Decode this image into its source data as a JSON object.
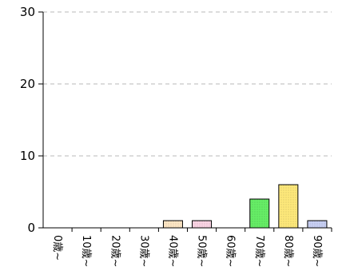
{
  "chart_data": {
    "type": "bar",
    "categories": [
      "0歳~",
      "10歳~",
      "20歳~",
      "30歳~",
      "40歳~",
      "50歳~",
      "60歳~",
      "70歳~",
      "80歳~",
      "90歳~"
    ],
    "values": [
      0,
      0,
      0,
      0,
      1,
      1,
      0,
      4,
      6,
      1
    ],
    "bar_colors": [
      "#ffffff",
      "#ffffff",
      "#ffffff",
      "#ffffff",
      "#fde6c4",
      "#fbd4e4",
      "#ffffff",
      "#66ee66",
      "#fde87a",
      "#c8d0f4"
    ],
    "title": "",
    "xlabel": "",
    "ylabel": "",
    "ylim": [
      0,
      30
    ],
    "yticks": [
      0,
      10,
      20,
      30
    ],
    "grid": true
  }
}
